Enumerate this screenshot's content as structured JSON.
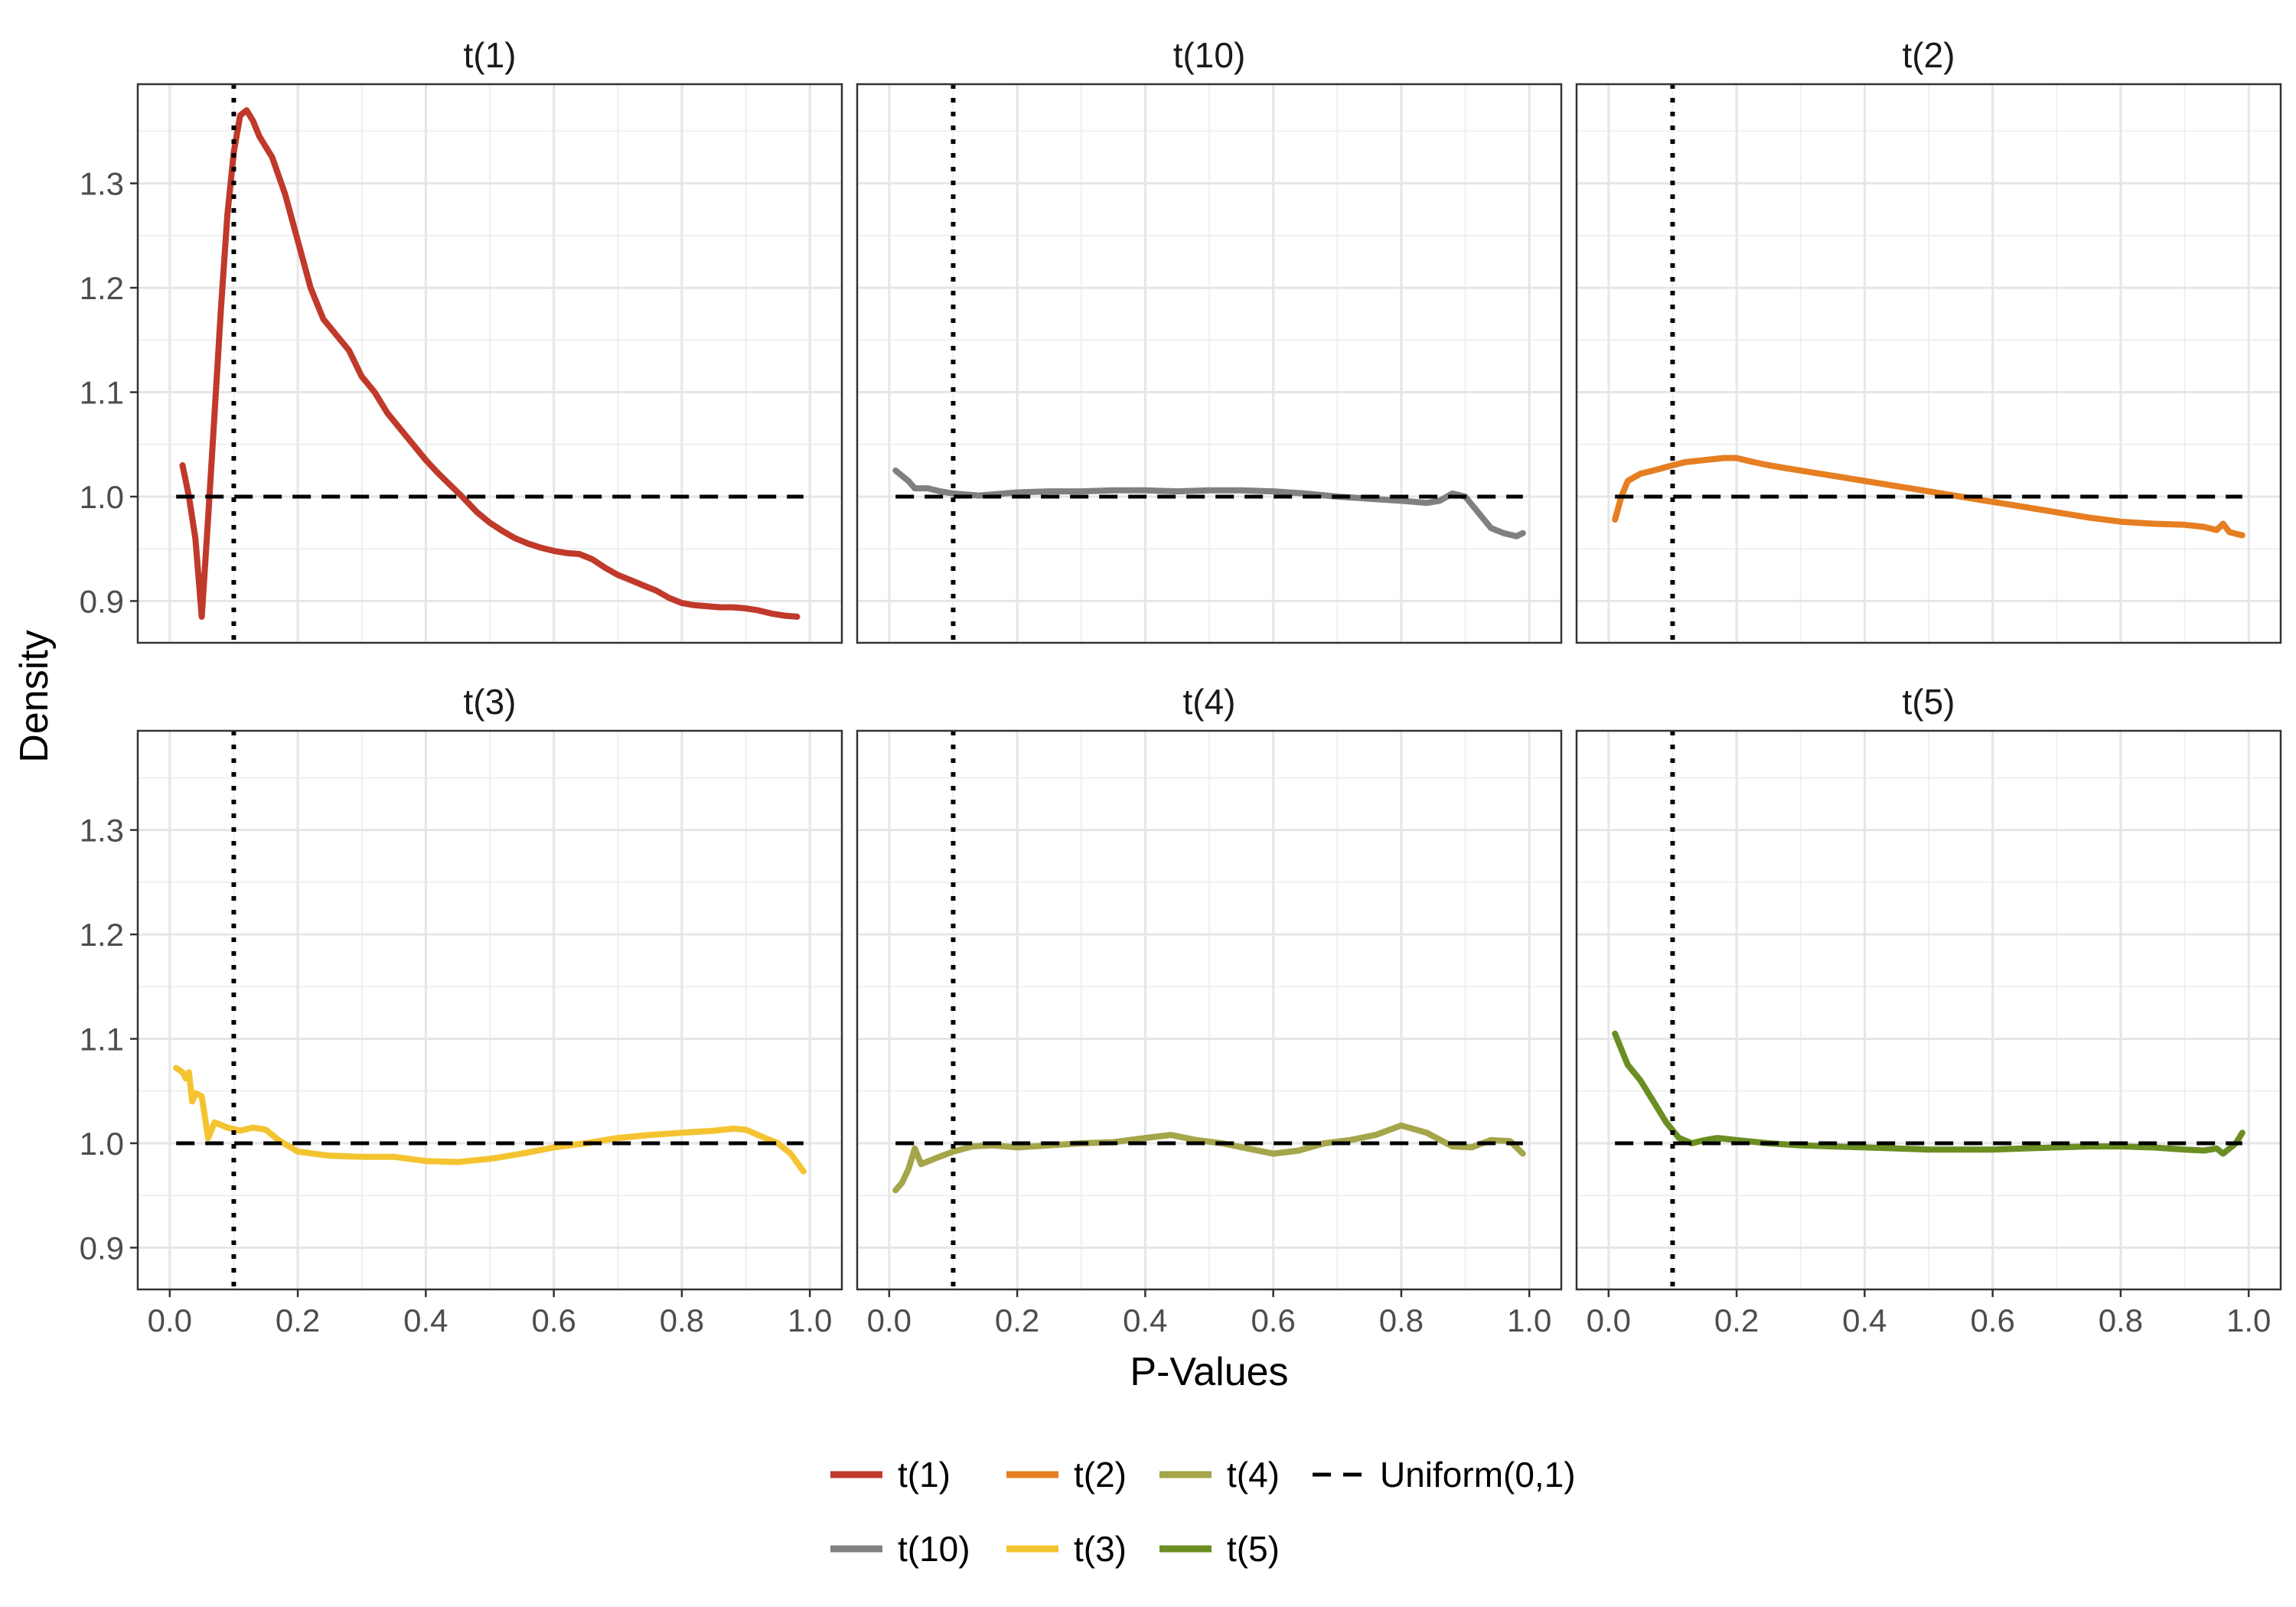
{
  "chart_data": {
    "type": "line",
    "layout": "facet-grid",
    "xlabel": "P-Values",
    "ylabel": "Density",
    "xlim": [
      -0.05,
      1.05
    ],
    "ylim": [
      0.86,
      1.395
    ],
    "x_ticks": [
      "0.0",
      "0.2",
      "0.4",
      "0.6",
      "0.8",
      "1.0"
    ],
    "y_ticks": [
      "0.9",
      "1.0",
      "1.1",
      "1.2",
      "1.3"
    ],
    "grid": true,
    "legend_position": "bottom",
    "reference_lines": {
      "horizontal": {
        "name": "Uniform(0,1)",
        "y": 1.0,
        "style": "dashed",
        "color": "#000000"
      },
      "vertical": {
        "x": 0.1,
        "style": "dotted",
        "color": "#000000"
      }
    },
    "panels": [
      {
        "title": "t(1)",
        "series": "t(1)",
        "color": "#C0392B",
        "points": [
          [
            0.02,
            1.03
          ],
          [
            0.03,
            1.0
          ],
          [
            0.04,
            0.96
          ],
          [
            0.05,
            0.885
          ],
          [
            0.06,
            0.98
          ],
          [
            0.07,
            1.08
          ],
          [
            0.08,
            1.18
          ],
          [
            0.09,
            1.27
          ],
          [
            0.1,
            1.33
          ],
          [
            0.11,
            1.365
          ],
          [
            0.12,
            1.37
          ],
          [
            0.13,
            1.36
          ],
          [
            0.14,
            1.345
          ],
          [
            0.16,
            1.325
          ],
          [
            0.18,
            1.29
          ],
          [
            0.2,
            1.245
          ],
          [
            0.22,
            1.2
          ],
          [
            0.24,
            1.17
          ],
          [
            0.26,
            1.155
          ],
          [
            0.28,
            1.14
          ],
          [
            0.3,
            1.115
          ],
          [
            0.32,
            1.1
          ],
          [
            0.34,
            1.08
          ],
          [
            0.36,
            1.065
          ],
          [
            0.38,
            1.05
          ],
          [
            0.4,
            1.035
          ],
          [
            0.42,
            1.022
          ],
          [
            0.44,
            1.01
          ],
          [
            0.46,
            0.998
          ],
          [
            0.48,
            0.985
          ],
          [
            0.5,
            0.975
          ],
          [
            0.52,
            0.967
          ],
          [
            0.54,
            0.96
          ],
          [
            0.56,
            0.955
          ],
          [
            0.58,
            0.951
          ],
          [
            0.6,
            0.948
          ],
          [
            0.62,
            0.946
          ],
          [
            0.64,
            0.945
          ],
          [
            0.66,
            0.94
          ],
          [
            0.68,
            0.932
          ],
          [
            0.7,
            0.925
          ],
          [
            0.72,
            0.92
          ],
          [
            0.74,
            0.915
          ],
          [
            0.76,
            0.91
          ],
          [
            0.78,
            0.903
          ],
          [
            0.8,
            0.898
          ],
          [
            0.82,
            0.896
          ],
          [
            0.84,
            0.895
          ],
          [
            0.86,
            0.894
          ],
          [
            0.88,
            0.894
          ],
          [
            0.9,
            0.893
          ],
          [
            0.92,
            0.891
          ],
          [
            0.94,
            0.888
          ],
          [
            0.96,
            0.886
          ],
          [
            0.98,
            0.885
          ]
        ]
      },
      {
        "title": "t(10)",
        "series": "t(10)",
        "color": "#808080",
        "points": [
          [
            0.01,
            1.025
          ],
          [
            0.02,
            1.02
          ],
          [
            0.03,
            1.015
          ],
          [
            0.04,
            1.008
          ],
          [
            0.06,
            1.008
          ],
          [
            0.08,
            1.005
          ],
          [
            0.1,
            1.003
          ],
          [
            0.12,
            1.002
          ],
          [
            0.14,
            1.001
          ],
          [
            0.16,
            1.002
          ],
          [
            0.18,
            1.003
          ],
          [
            0.2,
            1.004
          ],
          [
            0.25,
            1.005
          ],
          [
            0.3,
            1.005
          ],
          [
            0.35,
            1.006
          ],
          [
            0.4,
            1.006
          ],
          [
            0.45,
            1.005
          ],
          [
            0.5,
            1.006
          ],
          [
            0.55,
            1.006
          ],
          [
            0.6,
            1.005
          ],
          [
            0.65,
            1.003
          ],
          [
            0.7,
            1.0
          ],
          [
            0.75,
            0.998
          ],
          [
            0.8,
            0.996
          ],
          [
            0.84,
            0.994
          ],
          [
            0.86,
            0.996
          ],
          [
            0.88,
            1.003
          ],
          [
            0.9,
            1.0
          ],
          [
            0.92,
            0.985
          ],
          [
            0.94,
            0.97
          ],
          [
            0.96,
            0.965
          ],
          [
            0.98,
            0.962
          ],
          [
            0.99,
            0.965
          ]
        ]
      },
      {
        "title": "t(2)",
        "series": "t(2)",
        "color": "#E67E22",
        "points": [
          [
            0.01,
            0.978
          ],
          [
            0.02,
            1.0
          ],
          [
            0.03,
            1.015
          ],
          [
            0.05,
            1.022
          ],
          [
            0.07,
            1.025
          ],
          [
            0.1,
            1.03
          ],
          [
            0.12,
            1.033
          ],
          [
            0.15,
            1.035
          ],
          [
            0.18,
            1.037
          ],
          [
            0.2,
            1.037
          ],
          [
            0.22,
            1.034
          ],
          [
            0.25,
            1.03
          ],
          [
            0.3,
            1.025
          ],
          [
            0.35,
            1.02
          ],
          [
            0.4,
            1.015
          ],
          [
            0.45,
            1.01
          ],
          [
            0.5,
            1.005
          ],
          [
            0.55,
            1.0
          ],
          [
            0.6,
            0.995
          ],
          [
            0.65,
            0.99
          ],
          [
            0.7,
            0.985
          ],
          [
            0.75,
            0.98
          ],
          [
            0.8,
            0.976
          ],
          [
            0.85,
            0.974
          ],
          [
            0.9,
            0.973
          ],
          [
            0.93,
            0.971
          ],
          [
            0.95,
            0.968
          ],
          [
            0.96,
            0.974
          ],
          [
            0.97,
            0.966
          ],
          [
            0.99,
            0.963
          ]
        ]
      },
      {
        "title": "t(3)",
        "series": "t(3)",
        "color": "#F4C430",
        "points": [
          [
            0.01,
            1.072
          ],
          [
            0.02,
            1.068
          ],
          [
            0.025,
            1.062
          ],
          [
            0.03,
            1.068
          ],
          [
            0.035,
            1.04
          ],
          [
            0.04,
            1.048
          ],
          [
            0.05,
            1.045
          ],
          [
            0.06,
            1.005
          ],
          [
            0.07,
            1.02
          ],
          [
            0.09,
            1.015
          ],
          [
            0.11,
            1.012
          ],
          [
            0.13,
            1.015
          ],
          [
            0.15,
            1.013
          ],
          [
            0.17,
            1.003
          ],
          [
            0.2,
            0.992
          ],
          [
            0.25,
            0.988
          ],
          [
            0.3,
            0.987
          ],
          [
            0.35,
            0.987
          ],
          [
            0.4,
            0.983
          ],
          [
            0.45,
            0.982
          ],
          [
            0.5,
            0.985
          ],
          [
            0.55,
            0.99
          ],
          [
            0.6,
            0.996
          ],
          [
            0.65,
            1.0
          ],
          [
            0.7,
            1.005
          ],
          [
            0.75,
            1.008
          ],
          [
            0.8,
            1.01
          ],
          [
            0.85,
            1.012
          ],
          [
            0.88,
            1.014
          ],
          [
            0.9,
            1.013
          ],
          [
            0.93,
            1.005
          ],
          [
            0.95,
            1.0
          ],
          [
            0.97,
            0.99
          ],
          [
            0.99,
            0.973
          ]
        ]
      },
      {
        "title": "t(4)",
        "series": "t(4)",
        "color": "#A5A54A",
        "points": [
          [
            0.01,
            0.955
          ],
          [
            0.02,
            0.962
          ],
          [
            0.03,
            0.975
          ],
          [
            0.04,
            0.995
          ],
          [
            0.05,
            0.98
          ],
          [
            0.07,
            0.985
          ],
          [
            0.1,
            0.992
          ],
          [
            0.13,
            0.997
          ],
          [
            0.16,
            0.998
          ],
          [
            0.2,
            0.996
          ],
          [
            0.25,
            0.998
          ],
          [
            0.3,
            1.0
          ],
          [
            0.35,
            1.001
          ],
          [
            0.4,
            1.005
          ],
          [
            0.44,
            1.008
          ],
          [
            0.48,
            1.003
          ],
          [
            0.52,
            1.0
          ],
          [
            0.56,
            0.995
          ],
          [
            0.6,
            0.99
          ],
          [
            0.64,
            0.993
          ],
          [
            0.68,
            1.0
          ],
          [
            0.72,
            1.003
          ],
          [
            0.76,
            1.008
          ],
          [
            0.8,
            1.017
          ],
          [
            0.84,
            1.01
          ],
          [
            0.88,
            0.997
          ],
          [
            0.91,
            0.996
          ],
          [
            0.94,
            1.003
          ],
          [
            0.97,
            1.002
          ],
          [
            0.99,
            0.99
          ]
        ]
      },
      {
        "title": "t(5)",
        "series": "t(5)",
        "color": "#6B8E23",
        "points": [
          [
            0.01,
            1.105
          ],
          [
            0.02,
            1.09
          ],
          [
            0.03,
            1.075
          ],
          [
            0.05,
            1.06
          ],
          [
            0.07,
            1.04
          ],
          [
            0.09,
            1.02
          ],
          [
            0.11,
            1.005
          ],
          [
            0.13,
            1.0
          ],
          [
            0.15,
            1.003
          ],
          [
            0.17,
            1.005
          ],
          [
            0.2,
            1.003
          ],
          [
            0.25,
            1.0
          ],
          [
            0.3,
            0.998
          ],
          [
            0.35,
            0.997
          ],
          [
            0.4,
            0.996
          ],
          [
            0.45,
            0.995
          ],
          [
            0.5,
            0.994
          ],
          [
            0.55,
            0.994
          ],
          [
            0.6,
            0.994
          ],
          [
            0.65,
            0.995
          ],
          [
            0.7,
            0.996
          ],
          [
            0.75,
            0.997
          ],
          [
            0.8,
            0.997
          ],
          [
            0.85,
            0.996
          ],
          [
            0.9,
            0.994
          ],
          [
            0.93,
            0.993
          ],
          [
            0.95,
            0.995
          ],
          [
            0.96,
            0.99
          ],
          [
            0.97,
            0.995
          ],
          [
            0.98,
            1.0
          ],
          [
            0.99,
            1.01
          ]
        ]
      }
    ],
    "legend": {
      "entries": [
        {
          "label": "t(1)",
          "color": "#C0392B",
          "style": "solid"
        },
        {
          "label": "t(2)",
          "color": "#E67E22",
          "style": "solid"
        },
        {
          "label": "t(4)",
          "color": "#A5A54A",
          "style": "solid"
        },
        {
          "label": "Uniform(0,1)",
          "color": "#000000",
          "style": "dashed"
        },
        {
          "label": "t(10)",
          "color": "#808080",
          "style": "solid"
        },
        {
          "label": "t(3)",
          "color": "#F4C430",
          "style": "solid"
        },
        {
          "label": "t(5)",
          "color": "#6B8E23",
          "style": "solid"
        }
      ]
    }
  }
}
